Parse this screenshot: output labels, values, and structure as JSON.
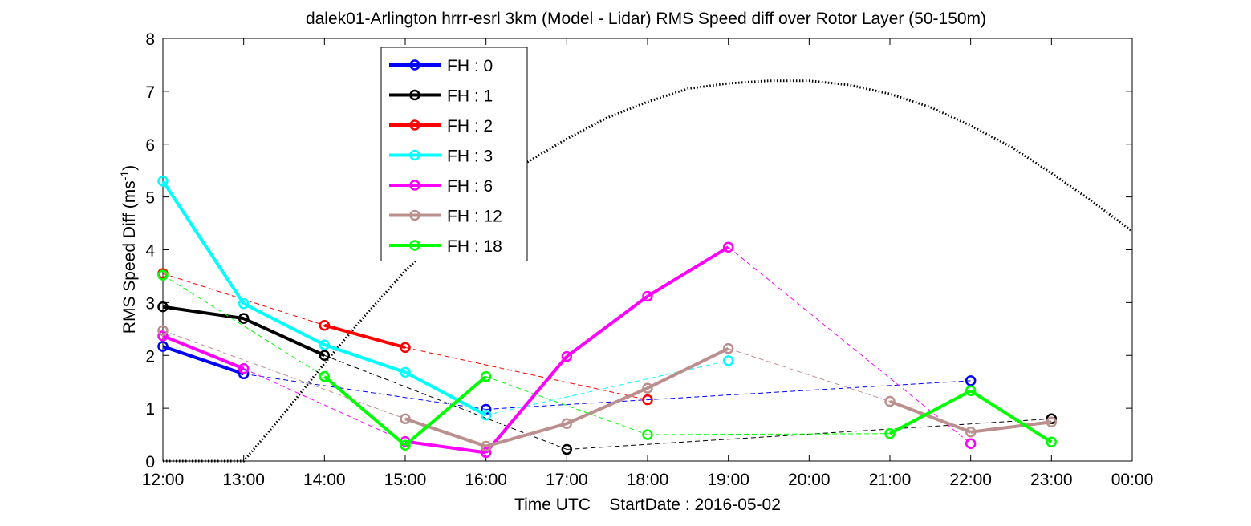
{
  "chart_data": {
    "type": "line",
    "title": "dalek01-Arlington hrrr-esrl 3km (Model - Lidar) RMS Speed diff over Rotor Layer (50-150m)",
    "xlabel": "Time UTC    StartDate : 2016-05-02",
    "ylabel": "RMS Speed Diff (ms",
    "ylabel_sup": "-1",
    "ylabel_close": ")",
    "xlim": [
      12,
      24
    ],
    "ylim": [
      0,
      8
    ],
    "x_ticks": [
      {
        "value": 12,
        "label": "12:00"
      },
      {
        "value": 13,
        "label": "13:00"
      },
      {
        "value": 14,
        "label": "14:00"
      },
      {
        "value": 15,
        "label": "15:00"
      },
      {
        "value": 16,
        "label": "16:00"
      },
      {
        "value": 17,
        "label": "17:00"
      },
      {
        "value": 18,
        "label": "18:00"
      },
      {
        "value": 19,
        "label": "19:00"
      },
      {
        "value": 20,
        "label": "20:00"
      },
      {
        "value": 21,
        "label": "21:00"
      },
      {
        "value": 22,
        "label": "22:00"
      },
      {
        "value": 23,
        "label": "23:00"
      },
      {
        "value": 24,
        "label": "00:00"
      }
    ],
    "y_ticks": [
      0,
      1,
      2,
      3,
      4,
      5,
      6,
      7,
      8
    ],
    "grid": false,
    "legend_position": "top-left",
    "series": [
      {
        "name": "FH : 0",
        "color": "#0000ff",
        "x": [
          12,
          13,
          16,
          22
        ],
        "y": [
          2.17,
          1.65,
          0.98,
          1.52
        ]
      },
      {
        "name": "FH : 1",
        "color": "#000000",
        "x": [
          12,
          13,
          14,
          17,
          23
        ],
        "y": [
          2.92,
          2.7,
          2.0,
          0.22,
          0.8
        ]
      },
      {
        "name": "FH : 2",
        "color": "#ff0000",
        "x": [
          12,
          14,
          15,
          18
        ],
        "y": [
          3.55,
          2.57,
          2.15,
          1.16
        ]
      },
      {
        "name": "FH : 3",
        "color": "#00ffff",
        "x": [
          12,
          13,
          14,
          15,
          16,
          19
        ],
        "y": [
          5.3,
          2.98,
          2.2,
          1.68,
          0.87,
          1.9
        ]
      },
      {
        "name": "FH : 6",
        "color": "#ff00ff",
        "x": [
          12,
          13,
          15,
          16,
          17,
          18,
          19,
          22
        ],
        "y": [
          2.37,
          1.75,
          0.37,
          0.16,
          1.98,
          3.12,
          4.05,
          0.33
        ]
      },
      {
        "name": "FH : 12",
        "color": "#bc8f8f",
        "x": [
          12,
          15,
          16,
          17,
          18,
          19,
          21,
          22,
          23
        ],
        "y": [
          2.47,
          0.8,
          0.28,
          0.71,
          1.38,
          2.13,
          1.13,
          0.55,
          0.74
        ]
      },
      {
        "name": "FH : 18",
        "color": "#00ff00",
        "x": [
          12,
          14,
          15,
          16,
          18,
          21,
          22,
          23
        ],
        "y": [
          3.52,
          1.6,
          0.3,
          1.6,
          0.5,
          0.52,
          1.33,
          0.36
        ]
      }
    ],
    "sun_elevation_curve": {
      "style": "dotted",
      "color": "#000000",
      "x": [
        12.0,
        12.5,
        13.0,
        13.5,
        14.0,
        14.5,
        15.0,
        15.5,
        16.0,
        16.5,
        17.0,
        17.5,
        18.0,
        18.5,
        19.0,
        19.5,
        20.0,
        20.5,
        21.0,
        21.5,
        22.0,
        22.5,
        23.0,
        23.5,
        24.0
      ],
      "y": [
        0.0,
        0.0,
        0.0,
        0.9,
        1.85,
        2.75,
        3.6,
        4.35,
        5.05,
        5.65,
        6.1,
        6.5,
        6.8,
        7.05,
        7.15,
        7.2,
        7.2,
        7.12,
        6.95,
        6.7,
        6.35,
        5.95,
        5.45,
        4.92,
        4.35
      ]
    }
  }
}
